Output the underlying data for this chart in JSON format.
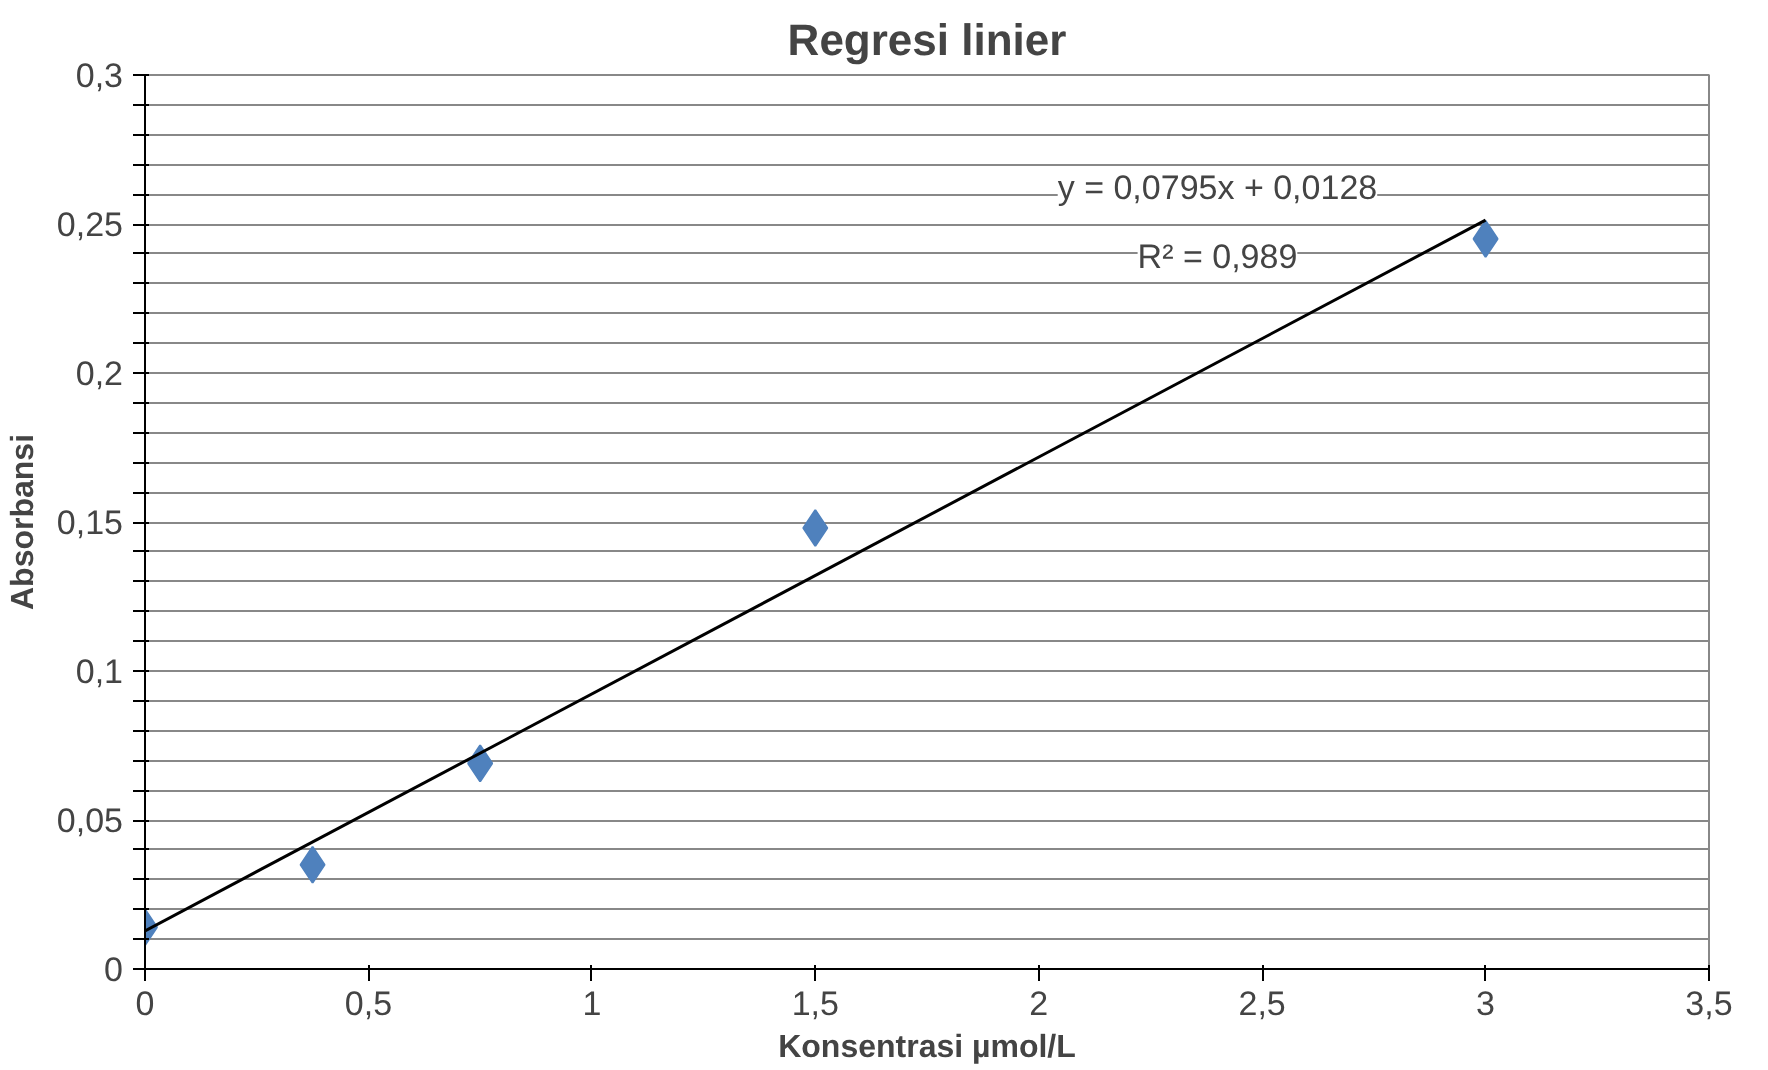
{
  "chart_data": {
    "type": "scatter",
    "title": "Regresi linier",
    "xlabel": "Konsentrasi µmol/L",
    "ylabel": "Absorbansi",
    "xlim": [
      0,
      3.5
    ],
    "ylim": [
      0,
      0.3
    ],
    "xticks": [
      0,
      {
        "value": 0.5,
        "label": "0,5"
      },
      1,
      {
        "value": 1.5,
        "label": "1,5"
      },
      2,
      {
        "value": 2.5,
        "label": "2,5"
      },
      3,
      {
        "value": 3.5,
        "label": "3,5"
      }
    ],
    "yticks": [
      0,
      {
        "value": 0.01,
        "label": null
      },
      {
        "value": 0.02,
        "label": null
      },
      {
        "value": 0.03,
        "label": null
      },
      {
        "value": 0.04,
        "label": null
      },
      {
        "value": 0.05,
        "label": "0,05"
      },
      {
        "value": 0.06,
        "label": null
      },
      {
        "value": 0.07,
        "label": null
      },
      {
        "value": 0.08,
        "label": null
      },
      {
        "value": 0.09,
        "label": null
      },
      {
        "value": 0.1,
        "label": "0,1"
      },
      {
        "value": 0.11,
        "label": null
      },
      {
        "value": 0.12,
        "label": null
      },
      {
        "value": 0.13,
        "label": null
      },
      {
        "value": 0.14,
        "label": null
      },
      {
        "value": 0.15,
        "label": "0,15"
      },
      {
        "value": 0.16,
        "label": null
      },
      {
        "value": 0.17,
        "label": null
      },
      {
        "value": 0.18,
        "label": null
      },
      {
        "value": 0.19,
        "label": null
      },
      {
        "value": 0.2,
        "label": "0,2"
      },
      {
        "value": 0.21,
        "label": null
      },
      {
        "value": 0.22,
        "label": null
      },
      {
        "value": 0.23,
        "label": null
      },
      {
        "value": 0.24,
        "label": null
      },
      {
        "value": 0.25,
        "label": "0,25"
      },
      {
        "value": 0.26,
        "label": null
      },
      {
        "value": 0.27,
        "label": null
      },
      {
        "value": 0.28,
        "label": null
      },
      {
        "value": 0.29,
        "label": null
      },
      {
        "value": 0.3,
        "label": "0,3"
      }
    ],
    "grid": "y",
    "marker": "diamond",
    "series": [
      {
        "color": "#4f81bd",
        "x": [
          0,
          0.375,
          0.75,
          1.5,
          3
        ],
        "values": [
          0.014,
          0.035,
          0.069,
          0.148,
          0.245
        ]
      },
      {
        "type": "line",
        "color": "#000000",
        "marker": "none",
        "x": [
          0,
          3
        ],
        "values": [
          0.0128,
          0.2513
        ]
      }
    ],
    "annotations": [
      "y = 0,0795x + 0,0128",
      "R² = 0,989"
    ]
  }
}
